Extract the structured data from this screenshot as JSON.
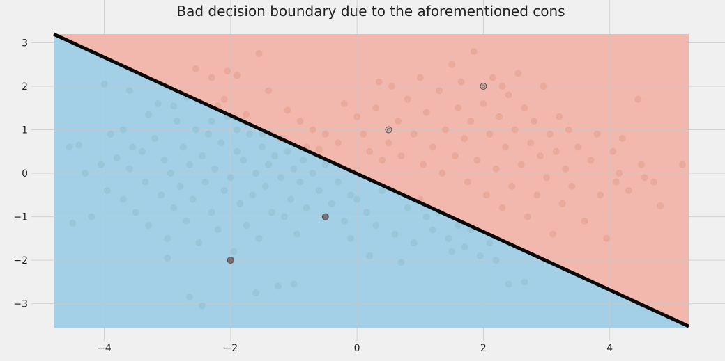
{
  "chart_data": {
    "type": "scatter",
    "title": "Bad decision boundary due to the aforementioned cons",
    "xlabel": "",
    "ylabel": "",
    "xlim": [
      -4.8,
      5.25
    ],
    "ylim": [
      -3.55,
      3.2
    ],
    "x_ticks": [
      -4,
      -2,
      0,
      2,
      4
    ],
    "y_ticks": [
      3,
      2,
      1,
      0,
      -1,
      -2,
      -3
    ],
    "x_tick_labels": [
      "−4",
      "−2",
      "0",
      "2",
      "4"
    ],
    "y_tick_labels": [
      "3",
      "2",
      "1",
      "0",
      "−1",
      "−2",
      "−3"
    ],
    "grid": true,
    "colors": {
      "background": "#f0f0f0",
      "region_above": "#f2b8ad",
      "region_below": "#a3d0e6",
      "points_above": "#e8a99a",
      "points_below": "#98c4d6",
      "boundary": "#0a0a0a",
      "grid": "#c8c8c8"
    },
    "decision_boundary": {
      "slope": -0.667,
      "intercept": 0.0,
      "from": [
        -4.8,
        3.2
      ],
      "to": [
        5.25,
        -3.52
      ]
    },
    "highlighted_points": [
      {
        "x": -2.0,
        "y": -2.0
      },
      {
        "x": -0.5,
        "y": -1.0
      },
      {
        "x": 0.5,
        "y": 1.0
      },
      {
        "x": 2.0,
        "y": 2.0
      }
    ],
    "scatter_points": [
      [
        -4.55,
        0.6
      ],
      [
        -4.5,
        -1.15
      ],
      [
        -4.4,
        0.65
      ],
      [
        -4.3,
        0.0
      ],
      [
        -4.2,
        -1.0
      ],
      [
        -4.05,
        0.2
      ],
      [
        -3.95,
        -0.4
      ],
      [
        -3.8,
        0.35
      ],
      [
        -3.7,
        -0.6
      ],
      [
        -3.6,
        0.1
      ],
      [
        -3.5,
        -0.9
      ],
      [
        -3.4,
        0.5
      ],
      [
        -3.35,
        -0.2
      ],
      [
        -3.3,
        -1.2
      ],
      [
        -3.2,
        0.8
      ],
      [
        -3.15,
        1.6
      ],
      [
        -3.1,
        -0.5
      ],
      [
        -3.05,
        0.3
      ],
      [
        -3.0,
        -1.5
      ],
      [
        -2.95,
        0.0
      ],
      [
        -2.9,
        -0.8
      ],
      [
        -2.85,
        1.2
      ],
      [
        -2.8,
        -0.3
      ],
      [
        -2.75,
        0.6
      ],
      [
        -2.7,
        -1.1
      ],
      [
        -2.65,
        0.2
      ],
      [
        -2.6,
        -0.6
      ],
      [
        -2.55,
        1.0
      ],
      [
        -2.5,
        -1.6
      ],
      [
        -2.45,
        0.4
      ],
      [
        -2.4,
        -0.2
      ],
      [
        -2.35,
        0.9
      ],
      [
        -2.3,
        -0.9
      ],
      [
        -2.25,
        0.1
      ],
      [
        -2.2,
        -1.3
      ],
      [
        -2.15,
        0.7
      ],
      [
        -2.1,
        -0.4
      ],
      [
        -2.05,
        1.3
      ],
      [
        -2.0,
        -0.1
      ],
      [
        -1.95,
        -1.8
      ],
      [
        -1.9,
        0.5
      ],
      [
        -1.85,
        -0.7
      ],
      [
        -1.8,
        0.3
      ],
      [
        -1.75,
        -1.2
      ],
      [
        -1.7,
        0.9
      ],
      [
        -1.65,
        -0.5
      ],
      [
        -1.6,
        0.0
      ],
      [
        -1.55,
        -1.5
      ],
      [
        -1.5,
        0.6
      ],
      [
        -1.45,
        -0.3
      ],
      [
        -1.4,
        0.2
      ],
      [
        -1.35,
        -0.9
      ],
      [
        -1.3,
        0.4
      ],
      [
        -1.25,
        -2.6
      ],
      [
        -1.2,
        -0.1
      ],
      [
        -1.15,
        -1.0
      ],
      [
        -1.1,
        0.5
      ],
      [
        -1.05,
        -0.6
      ],
      [
        -1.0,
        0.1
      ],
      [
        -0.95,
        -1.4
      ],
      [
        -0.9,
        -0.2
      ],
      [
        -0.85,
        0.3
      ],
      [
        -0.8,
        -0.8
      ],
      [
        -0.7,
        0.0
      ],
      [
        -0.6,
        -0.4
      ],
      [
        -0.5,
        0.2
      ],
      [
        -0.4,
        -0.7
      ],
      [
        -0.3,
        -0.2
      ],
      [
        -0.2,
        -1.1
      ],
      [
        -0.1,
        -0.5
      ],
      [
        -3.0,
        -1.95
      ],
      [
        -2.65,
        -2.85
      ],
      [
        -2.45,
        -3.05
      ],
      [
        -1.6,
        -2.75
      ],
      [
        -1.0,
        -2.55
      ],
      [
        -4.0,
        2.05
      ],
      [
        -3.6,
        1.9
      ],
      [
        -3.3,
        1.35
      ],
      [
        -2.9,
        1.55
      ],
      [
        -2.7,
        1.75
      ],
      [
        -0.1,
        -1.5
      ],
      [
        0.0,
        -0.6
      ],
      [
        0.15,
        -0.9
      ],
      [
        0.3,
        -1.2
      ],
      [
        0.4,
        -0.4
      ],
      [
        0.6,
        -1.4
      ],
      [
        0.8,
        -0.8
      ],
      [
        0.9,
        -1.6
      ],
      [
        1.0,
        -0.6
      ],
      [
        1.1,
        -1.0
      ],
      [
        1.2,
        -1.3
      ],
      [
        1.3,
        -0.9
      ],
      [
        1.45,
        -1.5
      ],
      [
        1.6,
        -1.2
      ],
      [
        1.7,
        -1.7
      ],
      [
        1.8,
        -1.3
      ],
      [
        1.95,
        -1.9
      ],
      [
        2.1,
        -1.6
      ],
      [
        0.2,
        -1.9
      ],
      [
        0.7,
        -2.05
      ],
      [
        1.5,
        -1.8
      ],
      [
        2.4,
        -2.55
      ],
      [
        2.65,
        -2.5
      ],
      [
        2.2,
        -2.0
      ],
      [
        -3.7,
        1.0
      ],
      [
        -3.55,
        0.6
      ],
      [
        -3.9,
        0.9
      ],
      [
        -2.2,
        1.55
      ],
      [
        -1.9,
        1.0
      ],
      [
        -1.5,
        0.9
      ],
      [
        -1.2,
        0.8
      ],
      [
        -0.8,
        0.6
      ],
      [
        -0.6,
        0.55
      ],
      [
        -2.3,
        1.2
      ],
      [
        -2.1,
        1.7
      ],
      [
        -1.75,
        1.35
      ],
      [
        -2.55,
        2.4
      ],
      [
        -2.3,
        2.2
      ],
      [
        -2.05,
        2.35
      ],
      [
        -1.9,
        2.25
      ],
      [
        -1.55,
        2.75
      ],
      [
        -1.4,
        1.9
      ],
      [
        -1.1,
        1.45
      ],
      [
        -0.9,
        1.2
      ],
      [
        -0.7,
        1.0
      ],
      [
        -0.5,
        0.9
      ],
      [
        -0.3,
        0.7
      ],
      [
        -0.2,
        1.6
      ],
      [
        0.0,
        1.3
      ],
      [
        0.1,
        0.9
      ],
      [
        0.2,
        0.5
      ],
      [
        0.3,
        1.5
      ],
      [
        0.35,
        2.1
      ],
      [
        0.4,
        0.3
      ],
      [
        0.5,
        0.7
      ],
      [
        0.55,
        2.0
      ],
      [
        0.65,
        1.2
      ],
      [
        0.7,
        0.4
      ],
      [
        0.8,
        1.7
      ],
      [
        0.9,
        0.9
      ],
      [
        1.0,
        2.2
      ],
      [
        1.05,
        0.2
      ],
      [
        1.1,
        1.4
      ],
      [
        1.2,
        0.6
      ],
      [
        1.3,
        1.9
      ],
      [
        1.35,
        0.0
      ],
      [
        1.4,
        1.0
      ],
      [
        1.5,
        2.5
      ],
      [
        1.55,
        0.4
      ],
      [
        1.6,
        1.5
      ],
      [
        1.7,
        0.8
      ],
      [
        1.75,
        -0.2
      ],
      [
        1.8,
        1.2
      ],
      [
        1.85,
        2.8
      ],
      [
        1.9,
        0.3
      ],
      [
        2.0,
        1.6
      ],
      [
        2.05,
        -0.5
      ],
      [
        2.1,
        0.9
      ],
      [
        2.15,
        2.2
      ],
      [
        2.2,
        0.1
      ],
      [
        2.25,
        1.3
      ],
      [
        2.3,
        -0.8
      ],
      [
        2.35,
        0.6
      ],
      [
        2.4,
        1.8
      ],
      [
        2.45,
        -0.3
      ],
      [
        2.5,
        1.0
      ],
      [
        2.55,
        2.3
      ],
      [
        2.6,
        0.2
      ],
      [
        2.65,
        1.5
      ],
      [
        2.7,
        -1.0
      ],
      [
        2.75,
        0.7
      ],
      [
        2.8,
        1.2
      ],
      [
        2.85,
        -0.5
      ],
      [
        2.9,
        0.4
      ],
      [
        2.95,
        2.0
      ],
      [
        3.0,
        -0.1
      ],
      [
        3.05,
        0.9
      ],
      [
        3.1,
        -1.4
      ],
      [
        3.15,
        0.5
      ],
      [
        3.2,
        1.3
      ],
      [
        3.25,
        -0.7
      ],
      [
        3.3,
        0.1
      ],
      [
        3.35,
        1.0
      ],
      [
        3.4,
        -0.3
      ],
      [
        3.5,
        0.6
      ],
      [
        3.6,
        -1.1
      ],
      [
        3.7,
        0.3
      ],
      [
        3.8,
        0.9
      ],
      [
        3.85,
        -0.5
      ],
      [
        3.95,
        -1.5
      ],
      [
        4.05,
        0.5
      ],
      [
        4.1,
        -0.2
      ],
      [
        4.15,
        0.0
      ],
      [
        4.2,
        0.8
      ],
      [
        4.3,
        -0.4
      ],
      [
        4.45,
        1.7
      ],
      [
        4.5,
        0.2
      ],
      [
        4.55,
        -0.1
      ],
      [
        4.7,
        -0.2
      ],
      [
        4.8,
        -0.75
      ],
      [
        5.15,
        0.2
      ],
      [
        2.3,
        2.0
      ],
      [
        1.65,
        2.1
      ]
    ]
  }
}
